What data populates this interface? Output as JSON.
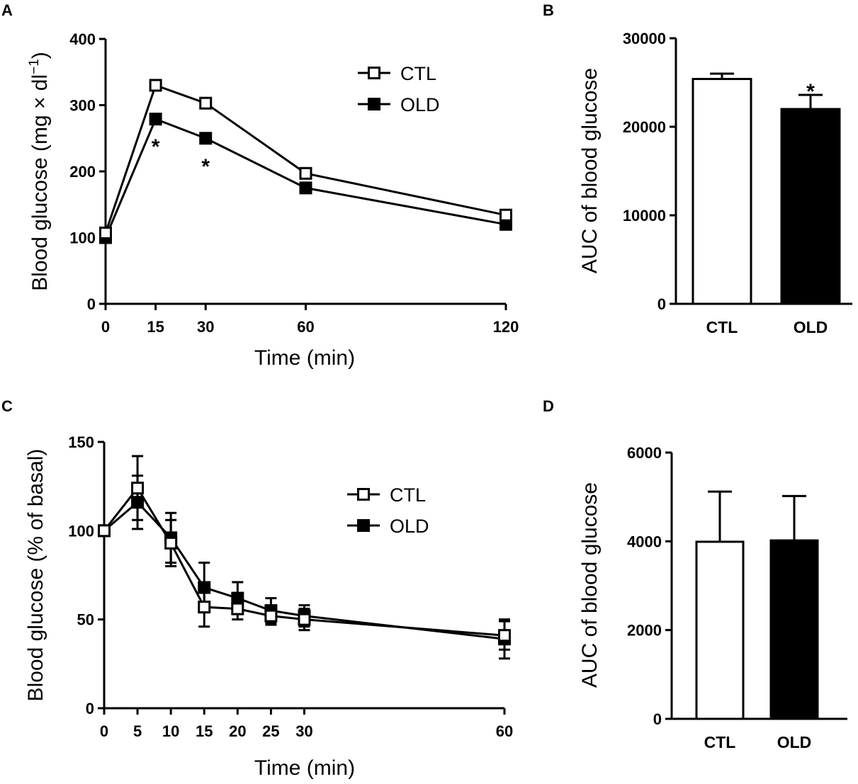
{
  "chart_data": [
    {
      "panel": "A",
      "type": "line",
      "xlabel": "Time (min)",
      "ylabel": "Blood glucose (mg × dl⁻¹)",
      "ylabel_main": "Blood glucose (mg × dl",
      "ylabel_sup": "−1",
      "ylabel_tail": ")",
      "x": [
        0,
        15,
        30,
        60,
        120
      ],
      "xticks": [
        "0",
        "15",
        "30",
        "60",
        "120"
      ],
      "ylim": [
        0,
        400
      ],
      "yticks": [
        "0",
        "100",
        "200",
        "300",
        "400"
      ],
      "series": [
        {
          "name": "CTL",
          "marker": "open-square",
          "values": [
            107,
            330,
            303,
            197,
            134
          ],
          "err": [
            0,
            0,
            0,
            0,
            0
          ]
        },
        {
          "name": "OLD",
          "marker": "filled-square",
          "values": [
            100,
            279,
            250,
            175,
            120
          ],
          "err": [
            0,
            0,
            0,
            0,
            0
          ]
        }
      ],
      "legend": [
        "CTL",
        "OLD"
      ],
      "annotations": [
        {
          "text": "*",
          "x": 15,
          "y": 248
        },
        {
          "text": "*",
          "x": 30,
          "y": 218
        }
      ]
    },
    {
      "panel": "B",
      "type": "bar",
      "ylabel": "AUC of blood glucose",
      "categories": [
        "CTL",
        "OLD"
      ],
      "values": [
        25400,
        22000
      ],
      "err": [
        600,
        1600
      ],
      "colors": [
        "#ffffff",
        "#000000"
      ],
      "ylim": [
        0,
        30000
      ],
      "yticks": [
        "0",
        "10000",
        "20000",
        "30000"
      ],
      "annotations": [
        {
          "text": "*",
          "category": "OLD",
          "y": 24800
        }
      ]
    },
    {
      "panel": "C",
      "type": "line",
      "xlabel": "Time (min)",
      "ylabel": "Blood glucose (% of basal)",
      "x": [
        0,
        5,
        10,
        15,
        20,
        25,
        30,
        60
      ],
      "xticks": [
        "0",
        "5",
        "10",
        "15",
        "20",
        "25",
        "30",
        "60"
      ],
      "ylim": [
        0,
        150
      ],
      "yticks": [
        "0",
        "50",
        "100",
        "150"
      ],
      "series": [
        {
          "name": "CTL",
          "marker": "open-square",
          "values": [
            100,
            124,
            93,
            57,
            56,
            52,
            50,
            41
          ],
          "err": [
            0,
            18,
            13,
            11,
            6,
            5,
            6,
            8
          ]
        },
        {
          "name": "OLD",
          "marker": "filled-square",
          "values": [
            100,
            116,
            96,
            68,
            62,
            55,
            52,
            39
          ],
          "err": [
            0,
            15,
            14,
            14,
            9,
            7,
            6,
            11
          ]
        }
      ],
      "legend": [
        "CTL",
        "OLD"
      ]
    },
    {
      "panel": "D",
      "type": "bar",
      "ylabel": "AUC of blood glucose",
      "categories": [
        "CTL",
        "OLD"
      ],
      "values": [
        3990,
        4020
      ],
      "err": [
        1130,
        1000
      ],
      "colors": [
        "#ffffff",
        "#000000"
      ],
      "ylim": [
        0,
        6000
      ],
      "yticks": [
        "0",
        "2000",
        "4000",
        "6000"
      ]
    }
  ]
}
